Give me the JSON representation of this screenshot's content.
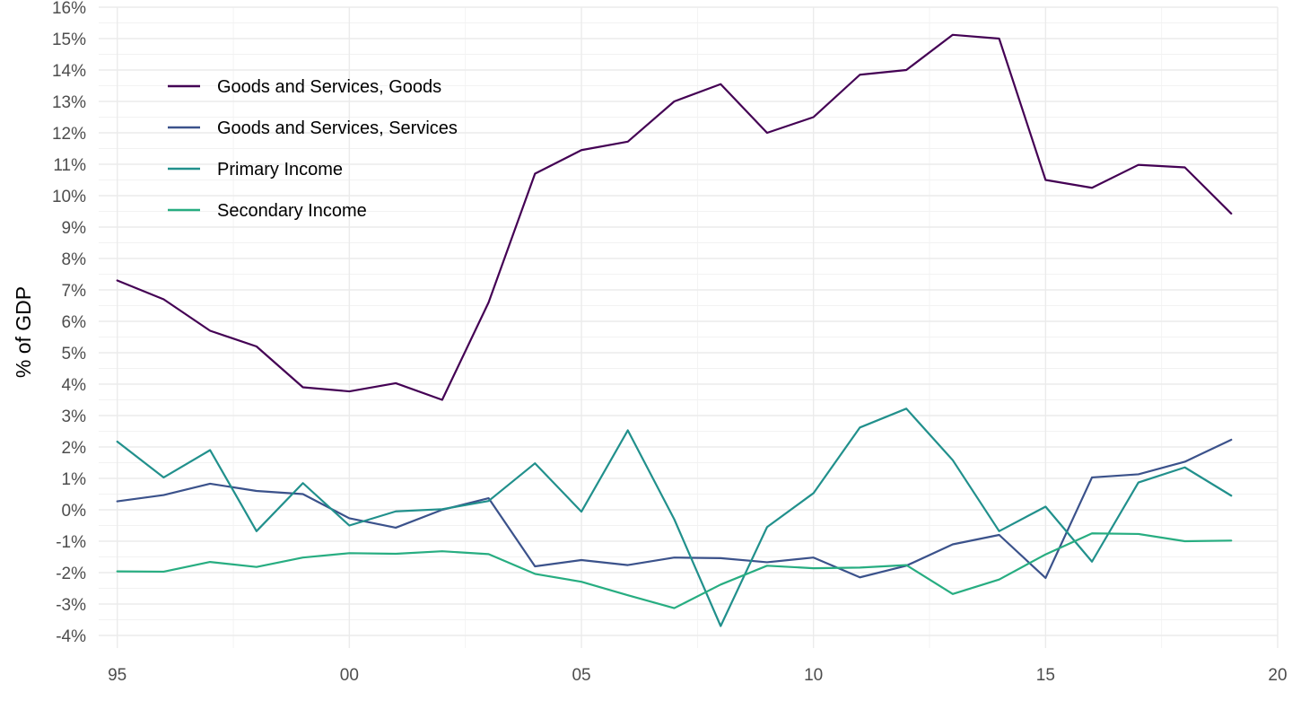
{
  "chart_data": {
    "type": "line",
    "title": "",
    "xlabel": "",
    "ylabel": "% of GDP",
    "x": [
      1995,
      1996,
      1997,
      1998,
      1999,
      2000,
      2001,
      2002,
      2003,
      2004,
      2005,
      2006,
      2007,
      2008,
      2009,
      2010,
      2011,
      2012,
      2013,
      2014,
      2015,
      2016,
      2017,
      2018,
      2019
    ],
    "xlim": [
      1994.6,
      2020
    ],
    "ylim": [
      -4.4,
      16
    ],
    "x_ticks": [
      1995,
      2000,
      2005,
      2010,
      2015,
      2020
    ],
    "x_tick_labels": [
      "95",
      "00",
      "05",
      "10",
      "15",
      "20"
    ],
    "y_ticks": [
      -4,
      -3,
      -2,
      -1,
      0,
      1,
      2,
      3,
      4,
      5,
      6,
      7,
      8,
      9,
      10,
      11,
      12,
      13,
      14,
      15,
      16
    ],
    "y_tick_labels": [
      "-4%",
      "-3%",
      "-2%",
      "-1%",
      "0%",
      "1%",
      "2%",
      "3%",
      "4%",
      "5%",
      "6%",
      "7%",
      "8%",
      "9%",
      "10%",
      "11%",
      "12%",
      "13%",
      "14%",
      "15%",
      "16%"
    ],
    "grid": true,
    "legend_position": "top-left",
    "series": [
      {
        "name": "Goods and Services, Goods",
        "color": "#440154",
        "values": [
          7.3,
          6.7,
          5.7,
          5.2,
          3.9,
          3.77,
          4.03,
          3.5,
          6.6,
          10.7,
          11.45,
          11.72,
          13.0,
          13.55,
          12.0,
          12.5,
          13.85,
          14.0,
          15.12,
          15.0,
          10.5,
          10.25,
          10.98,
          10.9,
          9.43
        ]
      },
      {
        "name": "Goods and Services, Services",
        "color": "#3b528b",
        "values": [
          0.27,
          0.47,
          0.83,
          0.6,
          0.5,
          -0.27,
          -0.57,
          0.0,
          0.37,
          -1.8,
          -1.6,
          -1.76,
          -1.52,
          -1.54,
          -1.67,
          -1.52,
          -2.15,
          -1.78,
          -1.1,
          -0.8,
          -2.17,
          1.03,
          1.13,
          1.53,
          2.23
        ]
      },
      {
        "name": "Primary Income",
        "color": "#21908c",
        "values": [
          2.17,
          1.03,
          1.9,
          -0.68,
          0.85,
          -0.5,
          -0.05,
          0.02,
          0.28,
          1.48,
          -0.06,
          2.53,
          -0.3,
          -3.7,
          -0.55,
          0.53,
          2.62,
          3.22,
          1.58,
          -0.68,
          0.1,
          -1.65,
          0.87,
          1.35,
          0.45
        ]
      },
      {
        "name": "Secondary Income",
        "color": "#27ad81",
        "values": [
          -1.96,
          -1.97,
          -1.66,
          -1.82,
          -1.52,
          -1.38,
          -1.4,
          -1.32,
          -1.41,
          -2.04,
          -2.29,
          -2.72,
          -3.13,
          -2.38,
          -1.78,
          -1.86,
          -1.84,
          -1.76,
          -2.68,
          -2.22,
          -1.42,
          -0.75,
          -0.77,
          -1.0,
          -0.98
        ]
      }
    ]
  }
}
